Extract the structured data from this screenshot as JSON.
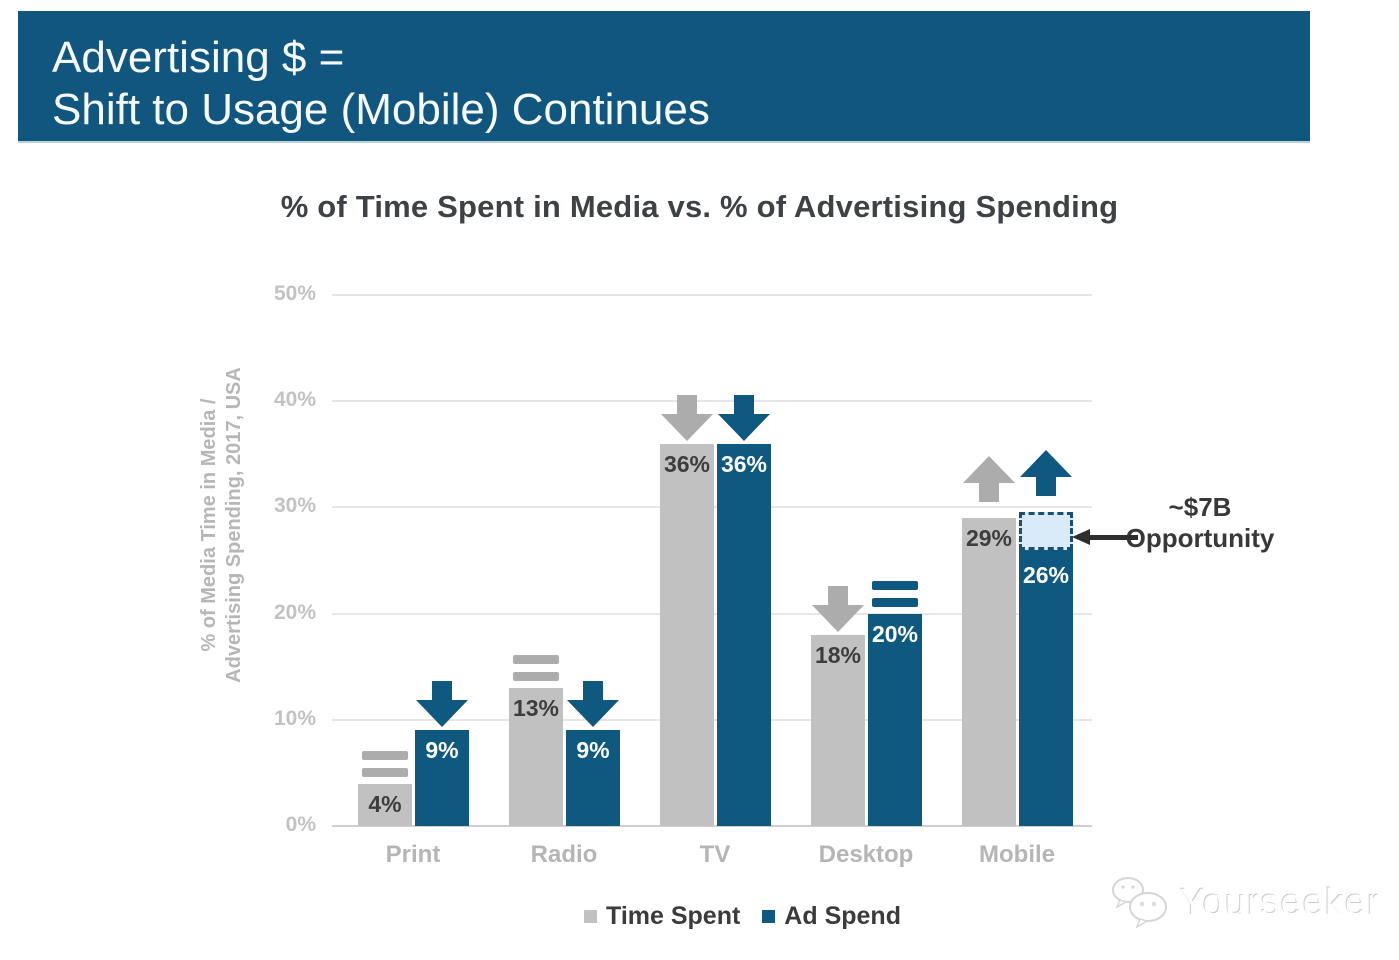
{
  "slide": {
    "banner": {
      "line1": "Advertising $ =",
      "line2": "Shift to Usage (Mobile) Continues",
      "bg_color": "#11567E",
      "text_color": "#F6FAFE"
    },
    "watermark": {
      "text": "Yourseeker",
      "icon": "wechat-logo"
    }
  },
  "chart_data": {
    "type": "bar",
    "title": "% of Time Spent in Media vs. % of Advertising Spending",
    "ylabel": "% of Media Time in Media / Advertising Spending, 2017, USA",
    "ylabel_lines": [
      "% of Media Time in Media /",
      "Advertising Spending, 2017, USA"
    ],
    "categories": [
      "Print",
      "Radio",
      "TV",
      "Desktop",
      "Mobile"
    ],
    "series": [
      {
        "name": "Time Spent",
        "color": "#C1C1C1",
        "icon_color": "#ACACAC",
        "label_color": "#3D3D3D",
        "values": [
          4,
          13,
          36,
          18,
          29
        ],
        "trends": [
          "flat",
          "flat",
          "down",
          "down",
          "up"
        ]
      },
      {
        "name": "Ad Spend",
        "color": "#0F5980",
        "icon_color": "#0F5980",
        "label_color": "#FFFFFF",
        "values": [
          9,
          9,
          36,
          20,
          26
        ],
        "trends": [
          "down",
          "down",
          "down",
          "flat",
          "up"
        ]
      }
    ],
    "yticks": [
      "0%",
      "10%",
      "20%",
      "30%",
      "40%",
      "50%"
    ],
    "ylim": [
      0,
      50
    ],
    "grid": true,
    "legend_position": "bottom",
    "opportunity": {
      "category": "Mobile",
      "series": "Ad Spend",
      "from_pct": 26,
      "to_pct": 29,
      "label_line1": "~$7B",
      "label_line2": "Opportunity",
      "box_fill": "#D9EBF8",
      "box_border": "#1C4E73"
    }
  }
}
